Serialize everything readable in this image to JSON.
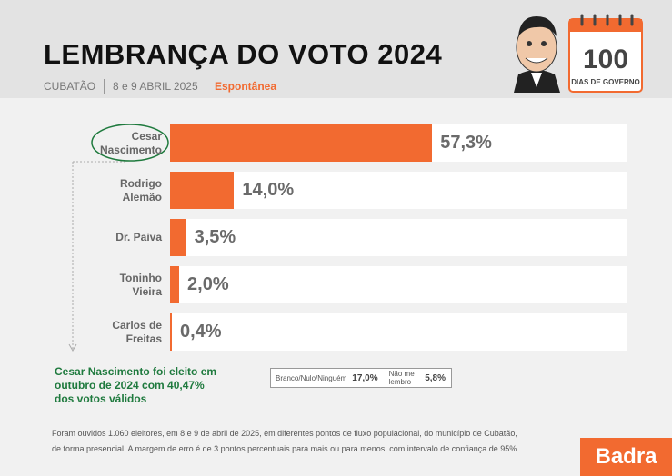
{
  "chart_data": {
    "type": "bar",
    "title": "LEMBRANÇA DO VOTO 2024",
    "subtitle": [
      "CUBATÃO",
      "8 e 9 ABRIL 2025",
      "Espontânea"
    ],
    "badge": {
      "number": "100",
      "text": "DIAS DE GOVERNO"
    },
    "categories": [
      "Cesar Nascimento",
      "Rodrigo Alemão",
      "Dr. Paiva",
      "Toninho Vieira",
      "Carlos de Freitas"
    ],
    "values": [
      57.3,
      14.0,
      3.5,
      2.0,
      0.4
    ],
    "value_labels": [
      "57,3%",
      "14,0%",
      "3,5%",
      "2,0%",
      "0,4%"
    ],
    "color": "#f26a30",
    "xlim": [
      0,
      100
    ],
    "annotation": "Cesar Nascimento foi eleito em outubro de 2024 com 40,47% dos votos válidos",
    "others": [
      {
        "name": "Branco/Nulo/Ninguém",
        "label": "17,0%"
      },
      {
        "name": "Não me lembro",
        "label": "5,8%"
      }
    ],
    "footnote": [
      "Foram ouvidos 1.060 eleitores, em 8 e 9 de abril de 2025, em diferentes pontos de fluxo populacional, do município de Cubatão,",
      "de forma presencial. A margem de erro é de 3 pontos percentuais para mais ou para menos, com intervalo de confiança de 95%."
    ],
    "brand": "Badra"
  }
}
